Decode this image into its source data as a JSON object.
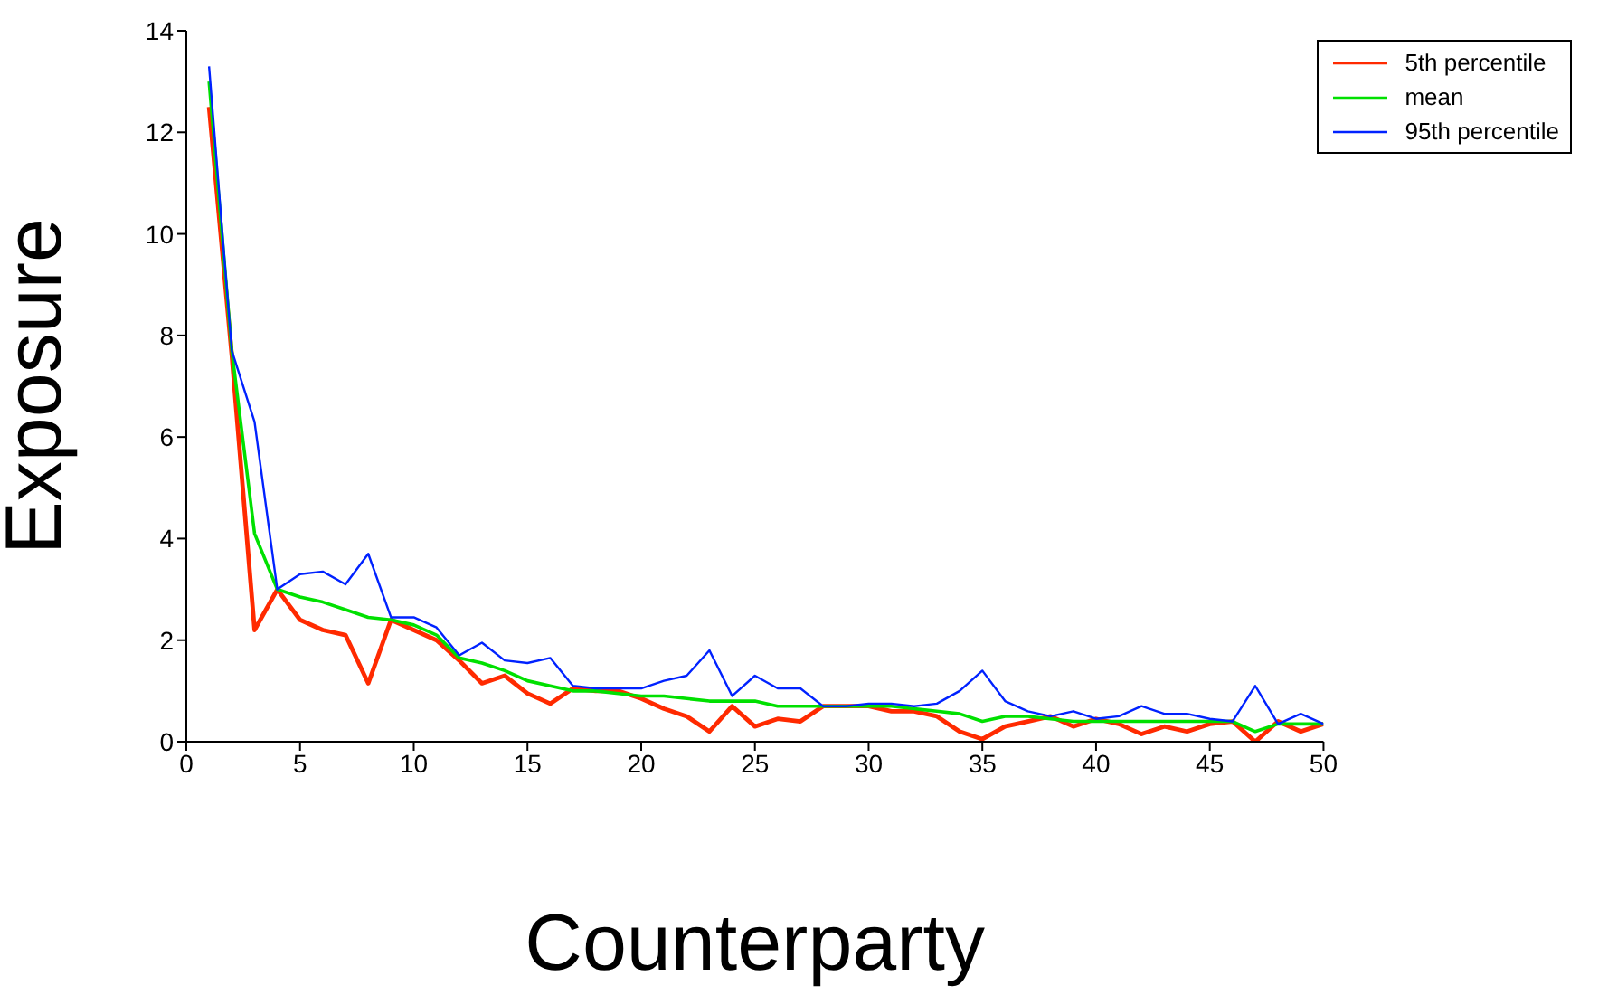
{
  "chart_data": {
    "type": "line",
    "xlabel": "Counterparty",
    "ylabel": "Exposure",
    "x": [
      1,
      2,
      3,
      4,
      5,
      6,
      7,
      8,
      9,
      10,
      11,
      12,
      13,
      14,
      15,
      16,
      17,
      18,
      19,
      20,
      21,
      22,
      23,
      24,
      25,
      26,
      27,
      28,
      29,
      30,
      31,
      32,
      33,
      34,
      35,
      36,
      37,
      38,
      39,
      40,
      41,
      42,
      43,
      44,
      45,
      46,
      47,
      48,
      49,
      50
    ],
    "series": [
      {
        "name": "5th percentile",
        "color": "#ff2a00",
        "values": [
          12.5,
          7.6,
          2.2,
          3.0,
          2.4,
          2.2,
          2.1,
          1.15,
          2.4,
          2.2,
          2.0,
          1.6,
          1.15,
          1.3,
          0.95,
          0.75,
          1.05,
          1.0,
          1.0,
          0.85,
          0.65,
          0.5,
          0.2,
          0.7,
          0.3,
          0.45,
          0.4,
          0.7,
          0.7,
          0.7,
          0.6,
          0.6,
          0.5,
          0.2,
          0.05,
          0.3,
          0.4,
          0.5,
          0.3,
          0.45,
          0.35,
          0.15,
          0.3,
          0.2,
          0.35,
          0.4,
          0.0,
          0.4,
          0.2,
          0.35
        ]
      },
      {
        "name": "mean",
        "color": "#00e000",
        "values": [
          13.0,
          7.7,
          4.1,
          3.0,
          2.85,
          2.75,
          2.6,
          2.45,
          2.4,
          2.3,
          2.1,
          1.65,
          1.55,
          1.4,
          1.2,
          1.1,
          1.0,
          1.0,
          0.95,
          0.9,
          0.9,
          0.85,
          0.8,
          0.8,
          0.8,
          0.7,
          0.7,
          0.7,
          0.7,
          0.7,
          0.7,
          0.65,
          0.6,
          0.55,
          0.4,
          0.5,
          0.5,
          0.45,
          0.4,
          0.4,
          0.4,
          0.4,
          0.4,
          0.4,
          0.4,
          0.4,
          0.2,
          0.35,
          0.35,
          0.35
        ]
      },
      {
        "name": "95th percentile",
        "color": "#0022ff",
        "values": [
          13.3,
          7.7,
          6.3,
          3.0,
          3.3,
          3.35,
          3.1,
          3.7,
          2.45,
          2.45,
          2.25,
          1.7,
          1.95,
          1.6,
          1.55,
          1.65,
          1.1,
          1.05,
          1.05,
          1.05,
          1.2,
          1.3,
          1.8,
          0.9,
          1.3,
          1.05,
          1.05,
          0.7,
          0.7,
          0.75,
          0.75,
          0.7,
          0.75,
          1.0,
          1.4,
          0.8,
          0.6,
          0.5,
          0.6,
          0.45,
          0.5,
          0.7,
          0.55,
          0.55,
          0.45,
          0.4,
          1.1,
          0.35,
          0.55,
          0.35
        ]
      }
    ],
    "xlim": [
      0,
      50
    ],
    "xticks": [
      0,
      5,
      10,
      15,
      20,
      25,
      30,
      35,
      40,
      45,
      50
    ],
    "ylim": [
      0,
      14
    ],
    "yticks": [
      0,
      2,
      4,
      6,
      8,
      10,
      12,
      14
    ],
    "legend": "top right",
    "grid": false,
    "marker": "none",
    "line_style": "solid"
  }
}
